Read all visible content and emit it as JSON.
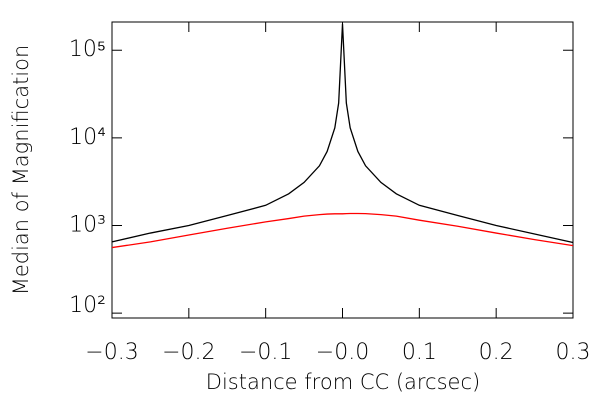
{
  "chart_data": {
    "type": "line",
    "xlabel": "Distance from CC (arcsec)",
    "ylabel": "Median of Magnification",
    "x": [
      -0.3,
      -0.25,
      -0.2,
      -0.15,
      -0.1,
      -0.07,
      -0.05,
      -0.03,
      -0.02,
      -0.01,
      -0.005,
      0,
      0.005,
      0.01,
      0.02,
      0.03,
      0.05,
      0.07,
      0.1,
      0.15,
      0.2,
      0.25,
      0.3
    ],
    "series": [
      {
        "color": "#000000",
        "values": [
          650,
          820,
          1000,
          1300,
          1700,
          2300,
          3100,
          4800,
          7000,
          13000,
          25000,
          200000,
          25000,
          13000,
          7000,
          4800,
          3100,
          2300,
          1700,
          1300,
          1000,
          800,
          640
        ]
      },
      {
        "color": "#ff0000",
        "values": [
          560,
          650,
          780,
          930,
          1100,
          1200,
          1280,
          1330,
          1350,
          1360,
          1360,
          1360,
          1365,
          1370,
          1370,
          1365,
          1330,
          1280,
          1150,
          980,
          820,
          690,
          590
        ]
      }
    ],
    "xlim": [
      -0.3,
      0.3
    ],
    "xticks": [
      {
        "value": -0.3,
        "label": "−0.3"
      },
      {
        "value": -0.2,
        "label": "−0.2"
      },
      {
        "value": -0.1,
        "label": "−0.1"
      },
      {
        "value": 0,
        "label": "−0.0"
      },
      0.1,
      0.2,
      0.3
    ],
    "ylim": [
      88,
      210000
    ],
    "ylog": true,
    "yticks": [
      {
        "value": 100,
        "label": "10²"
      },
      {
        "value": 1000,
        "label": "10³"
      },
      {
        "value": 10000,
        "label": "10⁴"
      },
      {
        "value": 100000,
        "label": "10⁵"
      }
    ]
  }
}
